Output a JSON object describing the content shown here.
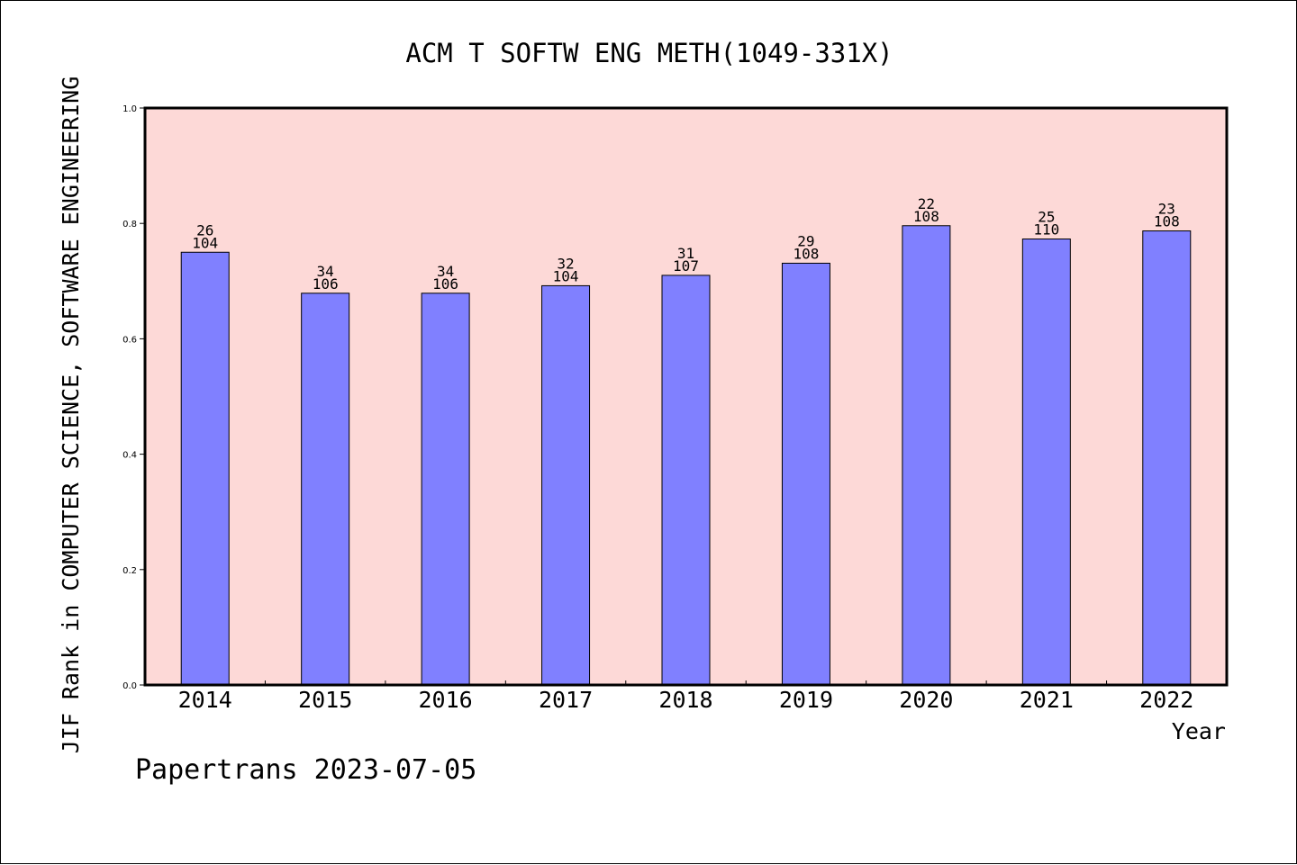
{
  "chart_data": {
    "type": "bar",
    "title": "ACM T SOFTW ENG METH(1049-331X)",
    "xlabel": "Year",
    "ylabel": "JIF Rank in COMPUTER SCIENCE, SOFTWARE ENGINEERING",
    "ylim": [
      0,
      1.0
    ],
    "yticks": [
      "0.0",
      "0.2",
      "0.4",
      "0.6",
      "0.8",
      "1.0"
    ],
    "categories": [
      "2014",
      "2015",
      "2016",
      "2017",
      "2018",
      "2019",
      "2020",
      "2021",
      "2022"
    ],
    "values": [
      0.75,
      0.679,
      0.679,
      0.692,
      0.71,
      0.731,
      0.796,
      0.773,
      0.787
    ],
    "bar_labels": [
      {
        "rank": "26",
        "total": "104"
      },
      {
        "rank": "34",
        "total": "106"
      },
      {
        "rank": "34",
        "total": "106"
      },
      {
        "rank": "32",
        "total": "104"
      },
      {
        "rank": "31",
        "total": "107"
      },
      {
        "rank": "29",
        "total": "108"
      },
      {
        "rank": "22",
        "total": "108"
      },
      {
        "rank": "25",
        "total": "110"
      },
      {
        "rank": "23",
        "total": "108"
      }
    ],
    "grid": false,
    "colors": {
      "plot_background": "#fdd9d7",
      "bar_fill": "#8080ff",
      "bar_stroke": "#000000"
    }
  },
  "footer": {
    "text": "Papertrans 2023-07-05"
  }
}
